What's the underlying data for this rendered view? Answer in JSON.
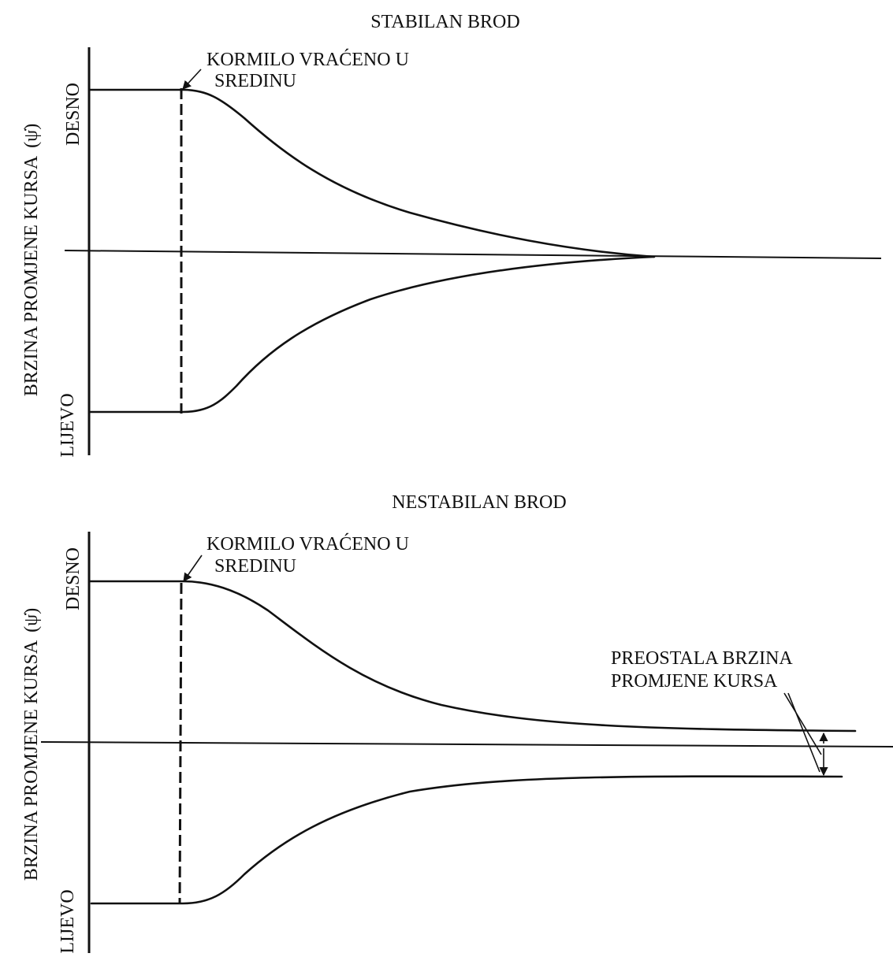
{
  "panels": {
    "stable": {
      "title": "STABILAN BROD",
      "y_axis_label": "BRZINA PROMJENE KURSA",
      "y_axis_symbol": "(ψ̇)",
      "y_top_label": "DESNO",
      "y_bottom_label": "LIJEVO",
      "annotation_line1": "KORMILO VRAĆENO U",
      "annotation_line2": "SREDINU"
    },
    "unstable": {
      "title": "NESTABILAN BROD",
      "y_axis_label": "BRZINA PROMJENE KURSA",
      "y_axis_symbol": "(ψ̇)",
      "y_top_label": "DESNO",
      "y_bottom_label": "LIJEVO",
      "annotation_line1": "KORMILO VRAĆENO U",
      "annotation_line2": "SREDINU",
      "residual_line1": "PREOSTALA BRZINA",
      "residual_line2": "PROMJENE KURSA"
    }
  }
}
